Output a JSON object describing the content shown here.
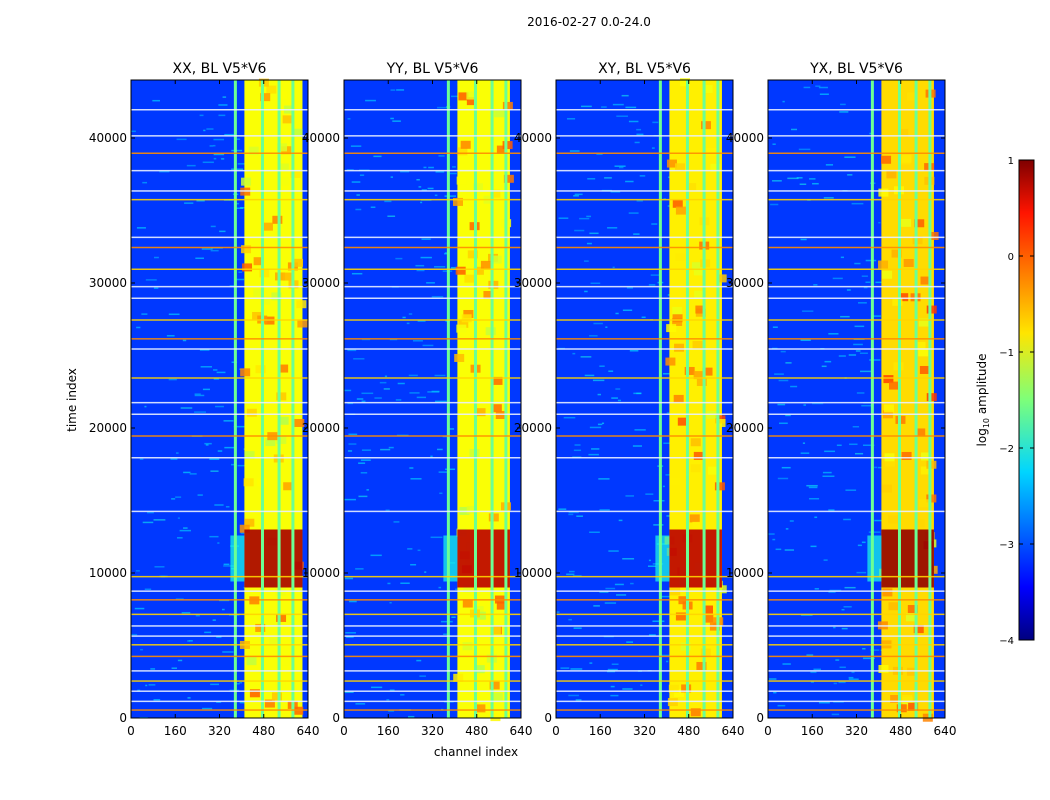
{
  "figure": {
    "suptitle": "2016-02-27 0.0-24.0",
    "xlabel": "channel index",
    "ylabel": "time index"
  },
  "colorbar": {
    "label_prefix": "log",
    "label_sub": "10",
    "label_suffix": " amplitude",
    "ticks": [
      {
        "value": 1,
        "label": "1"
      },
      {
        "value": 0,
        "label": "0"
      },
      {
        "value": -1,
        "label": "−1"
      },
      {
        "value": -2,
        "label": "−2"
      },
      {
        "value": -3,
        "label": "−3"
      },
      {
        "value": -4,
        "label": "−4"
      }
    ],
    "range": [
      -4,
      1
    ],
    "colormap": "jet"
  },
  "chart_data": [
    {
      "type": "heatmap",
      "title": "XX, BL V5*V6",
      "xlim": [
        0,
        640
      ],
      "ylim": [
        0,
        44000
      ],
      "xticks": [
        0,
        160,
        320,
        480,
        640
      ],
      "yticks": [
        0,
        10000,
        20000,
        30000,
        40000
      ],
      "value_range": [
        -4,
        1
      ],
      "approx_levels": {
        "background": -3.1,
        "rfi_band_channels": [
          410,
          620
        ],
        "rfi_band_level": -0.9,
        "strong_interval_time": [
          9000,
          13000
        ],
        "strong_interval_level": 0.8
      }
    },
    {
      "type": "heatmap",
      "title": "YY, BL V5*V6",
      "xlim": [
        0,
        640
      ],
      "ylim": [
        0,
        44000
      ],
      "xticks": [
        0,
        160,
        320,
        480,
        640
      ],
      "yticks": [
        0,
        10000,
        20000,
        30000,
        40000
      ],
      "value_range": [
        -4,
        1
      ],
      "approx_levels": {
        "background": -3.1,
        "rfi_band_channels": [
          410,
          600
        ],
        "rfi_band_level": -0.9,
        "strong_interval_time": [
          9000,
          13000
        ],
        "strong_interval_level": 0.7
      }
    },
    {
      "type": "heatmap",
      "title": "XY, BL V5*V6",
      "xlim": [
        0,
        640
      ],
      "ylim": [
        0,
        44000
      ],
      "xticks": [
        0,
        160,
        320,
        480,
        640
      ],
      "yticks": [
        0,
        10000,
        20000,
        30000,
        40000
      ],
      "value_range": [
        -4,
        1
      ],
      "approx_levels": {
        "background": -3.1,
        "rfi_band_channels": [
          410,
          600
        ],
        "rfi_band_level": -0.8,
        "strong_interval_time": [
          9000,
          13000
        ],
        "strong_interval_level": 0.7
      }
    },
    {
      "type": "heatmap",
      "title": "YX, BL V5*V6",
      "xlim": [
        0,
        640
      ],
      "ylim": [
        0,
        44000
      ],
      "xticks": [
        0,
        160,
        320,
        480,
        640
      ],
      "yticks": [
        0,
        10000,
        20000,
        30000,
        40000
      ],
      "value_range": [
        -4,
        1
      ],
      "approx_levels": {
        "background": -3.1,
        "rfi_band_channels": [
          410,
          600
        ],
        "rfi_band_level": -0.7,
        "strong_interval_time": [
          9000,
          13000
        ],
        "strong_interval_level": 0.9
      }
    }
  ]
}
